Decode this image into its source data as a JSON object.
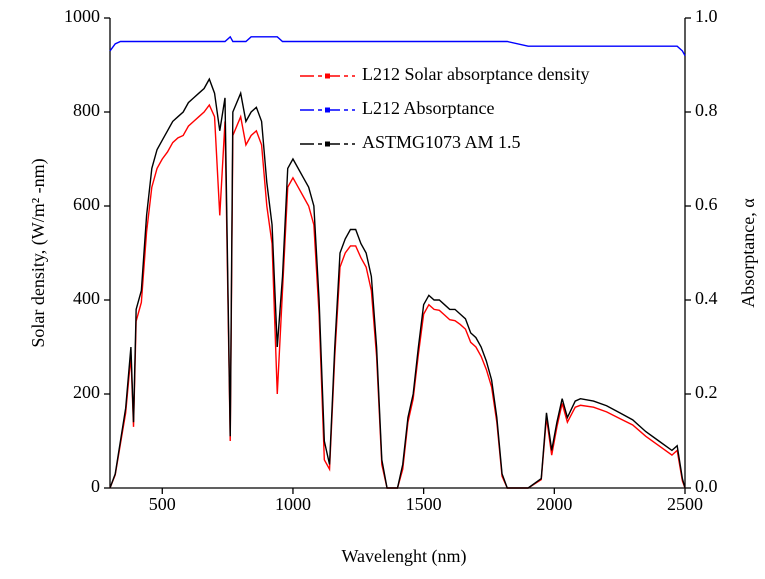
{
  "chart_data": {
    "type": "line",
    "x_label": "Wavelenght (nm)",
    "y_label": "Solar density, (W/m² -nm)",
    "y2_label": "Absorptance, α",
    "xlim": [
      300,
      2500
    ],
    "xticks": [
      500,
      1000,
      1500,
      2000,
      2500
    ],
    "ylim": [
      0,
      1000
    ],
    "yticks": [
      0,
      200,
      400,
      600,
      800,
      1000
    ],
    "y2lim": [
      0,
      1
    ],
    "y2ticks": [
      {
        "value": 0,
        "label": "0.0"
      },
      0.2,
      0.4,
      0.6,
      0.8,
      {
        "value": 1,
        "label": "1.0"
      }
    ],
    "legend": "upper right",
    "x": [
      300,
      320,
      340,
      360,
      380,
      390,
      400,
      420,
      440,
      460,
      480,
      500,
      520,
      540,
      560,
      580,
      600,
      620,
      640,
      660,
      680,
      700,
      720,
      740,
      760,
      770,
      800,
      820,
      840,
      860,
      880,
      900,
      920,
      940,
      960,
      980,
      1000,
      1020,
      1040,
      1060,
      1080,
      1100,
      1120,
      1140,
      1160,
      1180,
      1200,
      1220,
      1240,
      1260,
      1280,
      1300,
      1320,
      1340,
      1360,
      1380,
      1400,
      1420,
      1440,
      1460,
      1480,
      1500,
      1520,
      1540,
      1560,
      1580,
      1600,
      1620,
      1640,
      1660,
      1680,
      1700,
      1720,
      1740,
      1760,
      1780,
      1800,
      1820,
      1900,
      1950,
      1970,
      1990,
      2010,
      2030,
      2050,
      2080,
      2100,
      2150,
      2200,
      2250,
      2300,
      2350,
      2400,
      2450,
      2470,
      2490,
      2500
    ],
    "series": [
      {
        "name": "L212 Solar absorptance density",
        "color": "#ff0000",
        "values": [
          0,
          28,
          94,
          160,
          282,
          130,
          355,
          395,
          545,
          640,
          680,
          700,
          715,
          735,
          745,
          750,
          770,
          780,
          790,
          800,
          815,
          790,
          580,
          780,
          100,
          750,
          790,
          730,
          750,
          760,
          730,
          600,
          520,
          200,
          420,
          640,
          660,
          640,
          620,
          600,
          560,
          370,
          60,
          40,
          280,
          470,
          500,
          515,
          515,
          490,
          470,
          420,
          280,
          50,
          0,
          0,
          0,
          40,
          140,
          190,
          285,
          370,
          390,
          380,
          378,
          368,
          358,
          356,
          348,
          338,
          310,
          300,
          280,
          252,
          215,
          140,
          25,
          0,
          0,
          18,
          150,
          70,
          130,
          180,
          140,
          172,
          176,
          172,
          162,
          148,
          134,
          110,
          90,
          70,
          80,
          15,
          0
        ]
      },
      {
        "name": "L212 Absorptance",
        "color": "#0000ff",
        "axis": "y2",
        "values": [
          0.93,
          0.945,
          0.95,
          0.95,
          0.95,
          0.95,
          0.95,
          0.95,
          0.95,
          0.95,
          0.95,
          0.95,
          0.95,
          0.95,
          0.95,
          0.95,
          0.95,
          0.95,
          0.95,
          0.95,
          0.95,
          0.95,
          0.95,
          0.95,
          0.96,
          0.95,
          0.95,
          0.95,
          0.96,
          0.96,
          0.96,
          0.96,
          0.96,
          0.96,
          0.95,
          0.95,
          0.95,
          0.95,
          0.95,
          0.95,
          0.95,
          0.95,
          0.95,
          0.95,
          0.95,
          0.95,
          0.95,
          0.95,
          0.95,
          0.95,
          0.95,
          0.95,
          0.95,
          0.95,
          0.95,
          0.95,
          0.95,
          0.95,
          0.95,
          0.95,
          0.95,
          0.95,
          0.95,
          0.95,
          0.95,
          0.95,
          0.95,
          0.95,
          0.95,
          0.95,
          0.95,
          0.95,
          0.95,
          0.95,
          0.95,
          0.95,
          0.95,
          0.95,
          0.94,
          0.94,
          0.94,
          0.94,
          0.94,
          0.94,
          0.94,
          0.94,
          0.94,
          0.94,
          0.94,
          0.94,
          0.94,
          0.94,
          0.94,
          0.94,
          0.94,
          0.93,
          0.92
        ]
      },
      {
        "name": "ASTMG1073 AM 1.5",
        "color": "#000000",
        "values": [
          0,
          30,
          100,
          170,
          300,
          140,
          380,
          420,
          580,
          680,
          720,
          740,
          760,
          780,
          790,
          800,
          820,
          830,
          840,
          850,
          870,
          840,
          760,
          830,
          110,
          800,
          840,
          780,
          800,
          810,
          780,
          650,
          560,
          300,
          450,
          680,
          700,
          680,
          660,
          640,
          600,
          400,
          100,
          50,
          300,
          500,
          530,
          550,
          550,
          520,
          500,
          450,
          300,
          60,
          0,
          0,
          0,
          50,
          150,
          200,
          300,
          390,
          410,
          400,
          400,
          390,
          380,
          380,
          370,
          360,
          330,
          320,
          300,
          270,
          230,
          150,
          30,
          0,
          0,
          20,
          160,
          80,
          140,
          190,
          150,
          185,
          190,
          185,
          175,
          160,
          145,
          120,
          100,
          80,
          90,
          20,
          0
        ]
      }
    ]
  }
}
